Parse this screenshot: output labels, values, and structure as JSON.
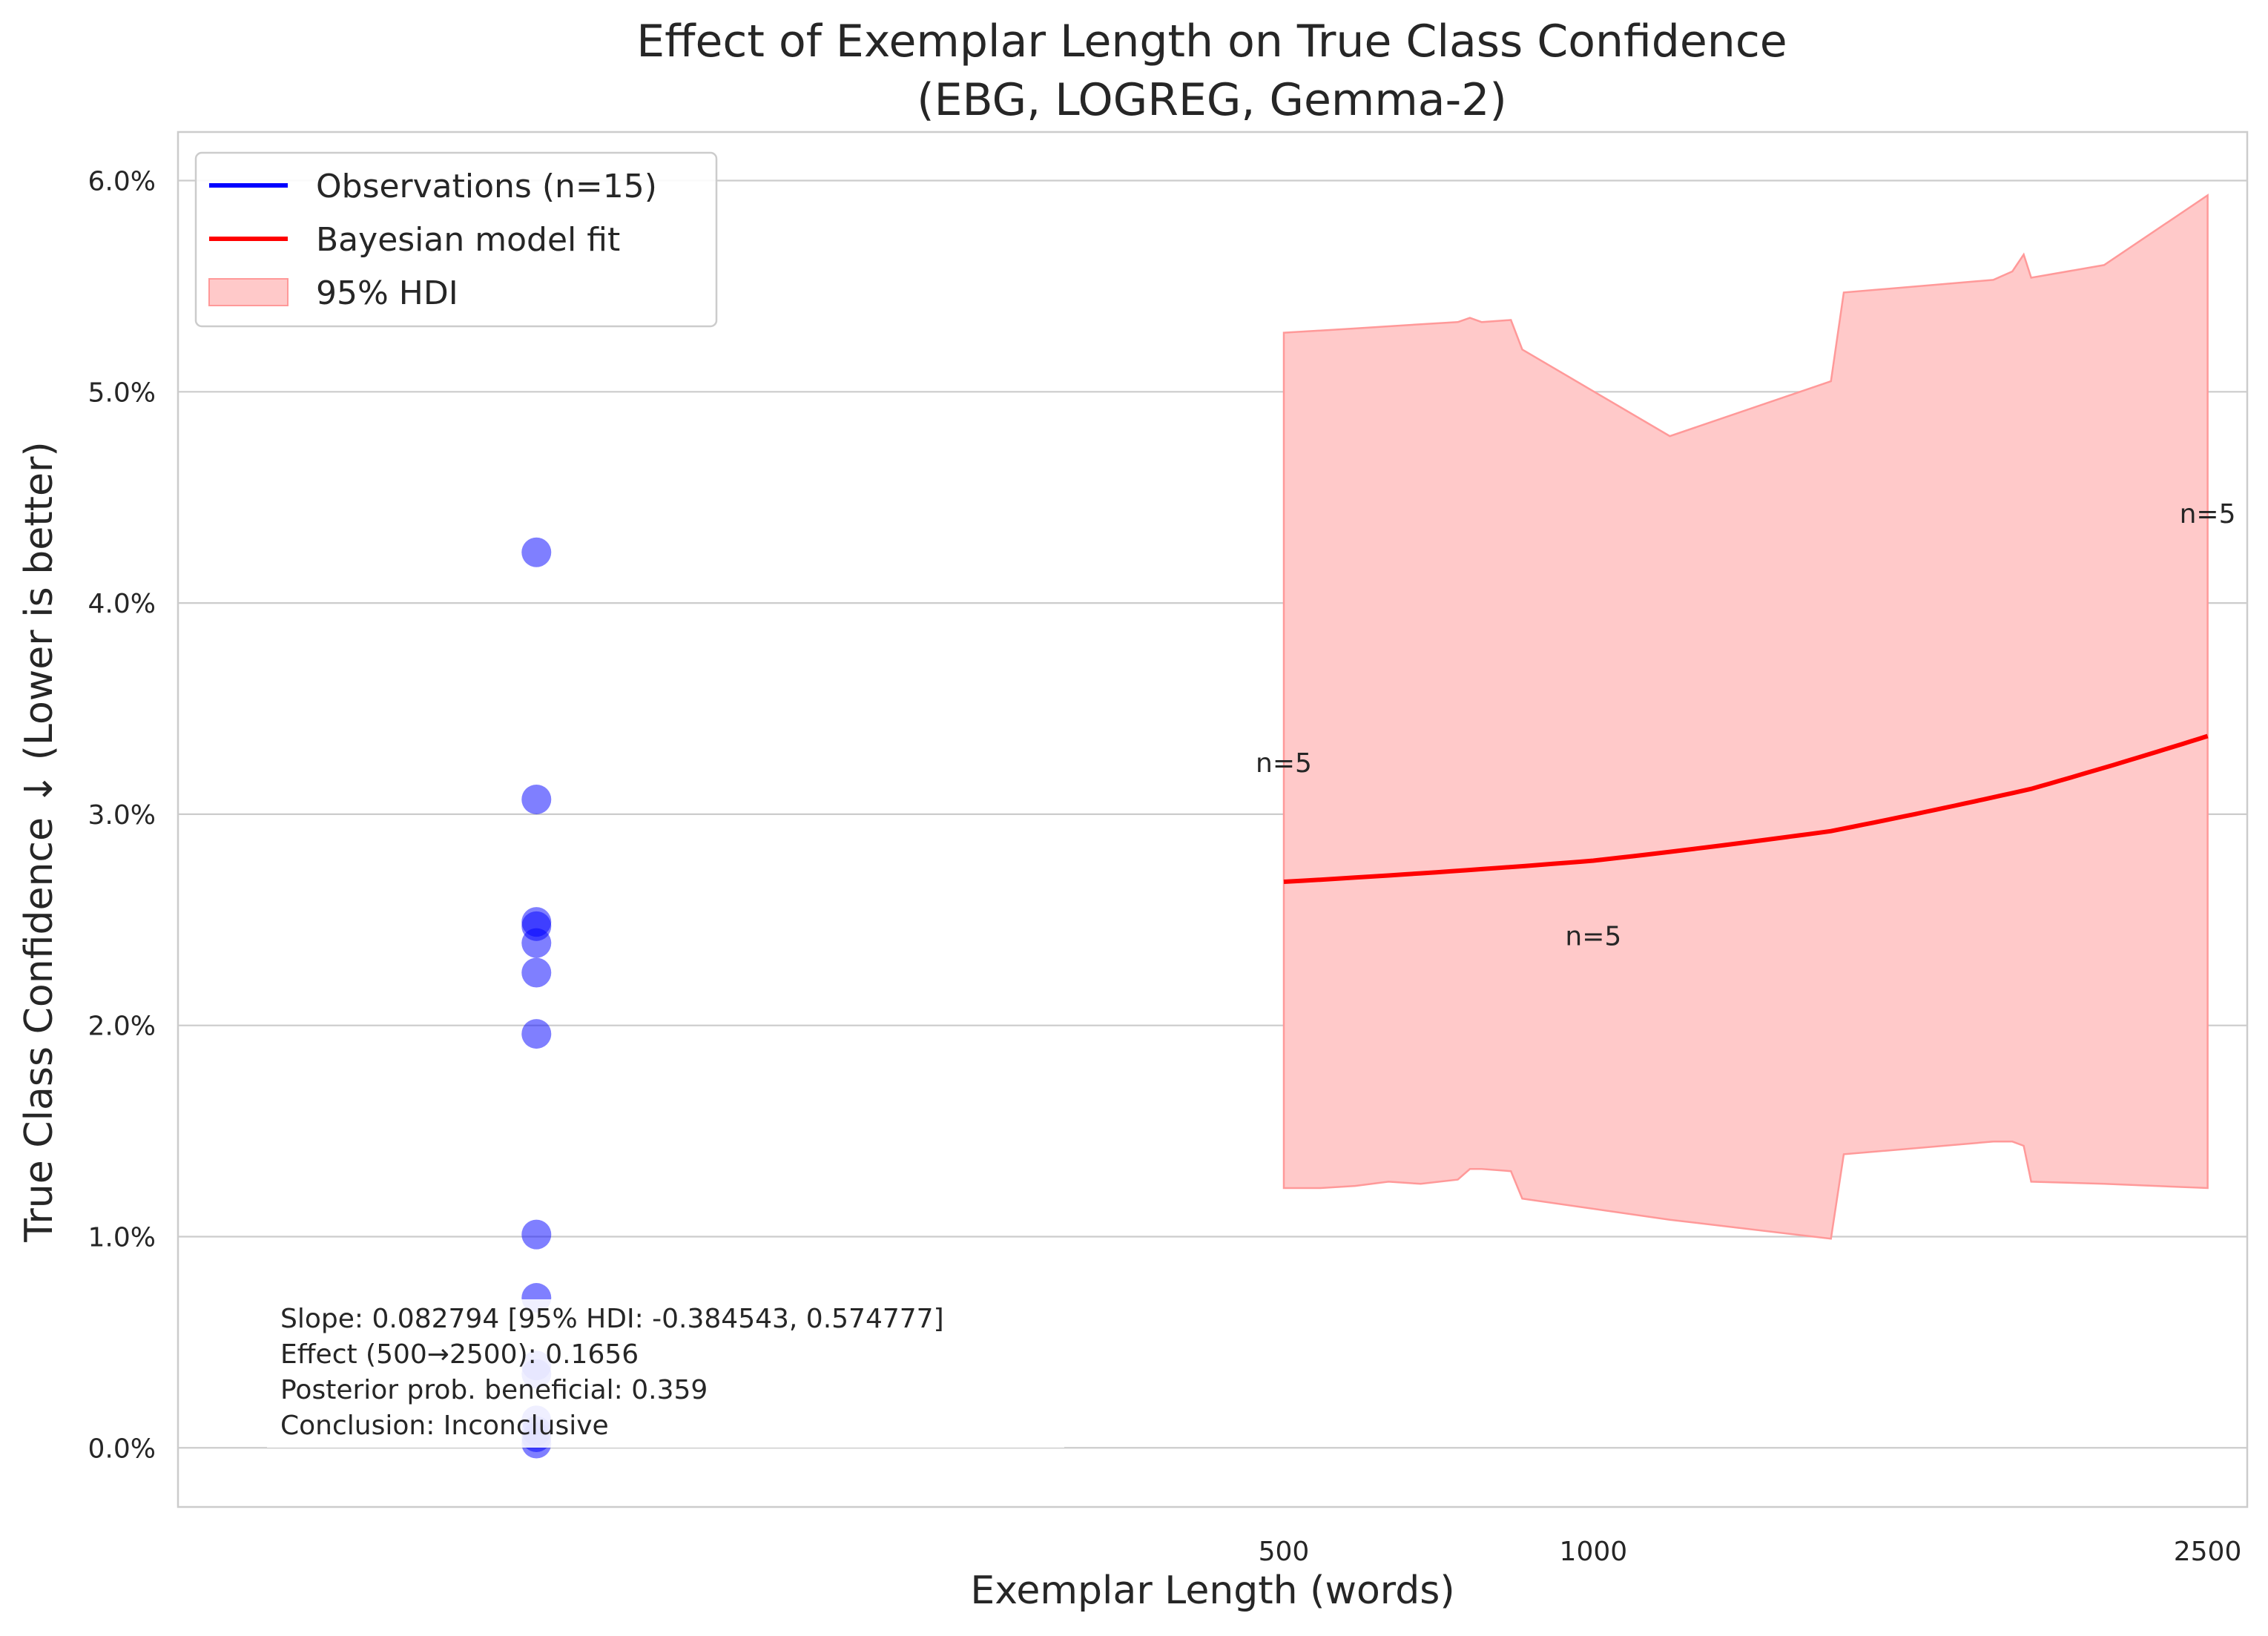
{
  "chart_data": {
    "type": "line",
    "title": "Effect of Exemplar Length on True Class Confidence",
    "subtitle": "(EBG, LOGREG, Gemma-2)",
    "xlabel": "Exemplar Length (words)",
    "ylabel": "True Class Confidence ↓ (Lower is better)",
    "xlim": [
      -115,
      2620
    ],
    "ylim": [
      -0.0028,
      0.0623
    ],
    "x_scale": "sqrt",
    "x_ticks": [
      500,
      1000,
      2500
    ],
    "x_tick_labels": [
      "500",
      "1000",
      "2500"
    ],
    "y_ticks": [
      0,
      0.01,
      0.02,
      0.03,
      0.04,
      0.05,
      0.06
    ],
    "y_tick_labels": [
      "0.0%",
      "1.0%",
      "2.0%",
      "3.0%",
      "4.0%",
      "5.0%",
      "6.0%"
    ],
    "grid": "y",
    "legend_position": "top-left",
    "colors": {
      "observations": "#0000ff",
      "fit": "#ff0000",
      "hdi_fill": "#ffc9c9",
      "hdi_edge": "#ff9999"
    },
    "legend": [
      {
        "label": "Observations (n=15)",
        "kind": "line",
        "color": "#0000ff"
      },
      {
        "label": "Bayesian model fit",
        "kind": "line",
        "color": "#ff0000"
      },
      {
        "label": "95% HDI",
        "kind": "patch",
        "color": "#ffc9c9"
      }
    ],
    "observations": {
      "name": "Observations (n=15)",
      "x_jitter": 0,
      "y": [
        0.0424,
        0.0307,
        0.0249,
        0.0247,
        0.0239,
        0.0225,
        0.0196,
        0.0101,
        0.0071,
        0.0039,
        0.0035,
        0.0013,
        0.0008,
        0.0005,
        0.0002
      ]
    },
    "fit": {
      "name": "Bayesian model fit",
      "x": [
        500,
        1000,
        1500,
        2000,
        2500
      ],
      "y": [
        0.0268,
        0.0278,
        0.0292,
        0.0312,
        0.0337
      ]
    },
    "hdi": {
      "name": "95% HDI",
      "x": [
        500,
        550,
        600,
        650,
        700,
        760,
        780,
        800,
        850,
        870,
        1150,
        1500,
        1530,
        1900,
        1950,
        1980,
        2000,
        2200,
        2500
      ],
      "upper": [
        0.0528,
        0.0529,
        0.053,
        0.0531,
        0.0532,
        0.0533,
        0.0535,
        0.0533,
        0.0534,
        0.052,
        0.0479,
        0.0505,
        0.0547,
        0.0553,
        0.0557,
        0.0565,
        0.0554,
        0.056,
        0.0593
      ],
      "lower": [
        0.0123,
        0.0123,
        0.0124,
        0.0126,
        0.0125,
        0.0127,
        0.0132,
        0.0132,
        0.0131,
        0.0118,
        0.0108,
        0.0099,
        0.0139,
        0.0145,
        0.0145,
        0.0143,
        0.0126,
        0.0125,
        0.0123
      ]
    },
    "annotations": [
      {
        "text": "n=5",
        "x": 500,
        "y": 0.032
      },
      {
        "text": "n=5",
        "x": 1000,
        "y": 0.0238
      },
      {
        "text": "n=5",
        "x": 2500,
        "y": 0.0438
      }
    ],
    "stats_box": [
      "Slope: 0.082794 [95% HDI: -0.384543, 0.574777]",
      "Effect (500→2500): 0.1656",
      "Posterior prob. beneficial: 0.359",
      "Conclusion: Inconclusive"
    ]
  }
}
